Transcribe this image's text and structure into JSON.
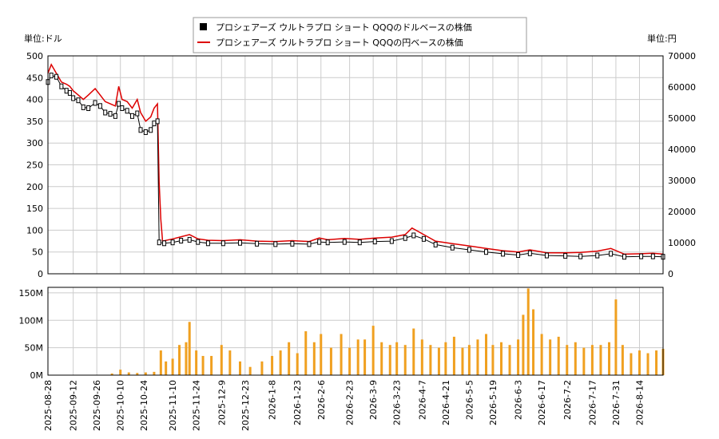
{
  "legend": {
    "usd_label": "プロシェアーズ ウルトラプロ ショート QQQのドルベースの株価",
    "jpy_label": "プロシェアーズ ウルトラプロ ショート QQQの円ベースの株価"
  },
  "axis_labels": {
    "left_unit": "単位:ドル",
    "right_unit": "単位:円"
  },
  "colors": {
    "usd_candle": "#000000",
    "jpy_line": "#dd0000",
    "volume_bar": "#f0a020",
    "grid": "#cccccc"
  },
  "chart_data": [
    {
      "type": "line",
      "name": "price-panel",
      "y_left": {
        "label": "単位:ドル",
        "lim": [
          0,
          500
        ],
        "ticks": [
          0,
          50,
          100,
          150,
          200,
          250,
          300,
          350,
          400,
          450,
          500
        ]
      },
      "y_right": {
        "label": "単位:円",
        "lim": [
          0,
          70000
        ],
        "ticks": [
          0,
          10000,
          20000,
          30000,
          40000,
          50000,
          60000,
          70000
        ]
      },
      "x_range": [
        "2025-08-28",
        "2026-08-28"
      ],
      "grid": true,
      "legend_position": "top-center",
      "series": [
        {
          "name": "プロシェアーズ ウルトラプロ ショート QQQのドルベースの株価",
          "style": "candlestick",
          "points": [
            [
              "2025-08-28",
              440
            ],
            [
              "2025-08-30",
              455
            ],
            [
              "2025-09-02",
              452
            ],
            [
              "2025-09-05",
              430
            ],
            [
              "2025-09-08",
              420
            ],
            [
              "2025-09-10",
              415
            ],
            [
              "2025-09-12",
              403
            ],
            [
              "2025-09-15",
              398
            ],
            [
              "2025-09-18",
              382
            ],
            [
              "2025-09-21",
              380
            ],
            [
              "2025-09-25",
              392
            ],
            [
              "2025-09-28",
              385
            ],
            [
              "2025-10-01",
              370
            ],
            [
              "2025-10-04",
              367
            ],
            [
              "2025-10-07",
              362
            ],
            [
              "2025-10-09",
              390
            ],
            [
              "2025-10-11",
              380
            ],
            [
              "2025-10-14",
              374
            ],
            [
              "2025-10-17",
              362
            ],
            [
              "2025-10-20",
              368
            ],
            [
              "2025-10-22",
              330
            ],
            [
              "2025-10-25",
              325
            ],
            [
              "2025-10-28",
              330
            ],
            [
              "2025-10-30",
              345
            ],
            [
              "2025-11-01",
              350
            ],
            [
              "2025-11-02",
              72
            ],
            [
              "2025-11-05",
              70
            ],
            [
              "2025-11-10",
              72
            ],
            [
              "2025-11-15",
              76
            ],
            [
              "2025-11-20",
              78
            ],
            [
              "2025-11-25",
              73
            ],
            [
              "2025-12-01",
              70
            ],
            [
              "2025-12-10",
              70
            ],
            [
              "2025-12-20",
              71
            ],
            [
              "2025-12-30",
              69
            ],
            [
              "2026-01-10",
              68
            ],
            [
              "2026-01-20",
              69
            ],
            [
              "2026-01-30",
              68
            ],
            [
              "2026-02-05",
              73
            ],
            [
              "2026-02-10",
              72
            ],
            [
              "2026-02-20",
              73
            ],
            [
              "2026-03-01",
              72
            ],
            [
              "2026-03-10",
              74
            ],
            [
              "2026-03-20",
              75
            ],
            [
              "2026-03-28",
              82
            ],
            [
              "2026-04-02",
              88
            ],
            [
              "2026-04-08",
              80
            ],
            [
              "2026-04-15",
              67
            ],
            [
              "2026-04-25",
              60
            ],
            [
              "2026-05-05",
              55
            ],
            [
              "2026-05-15",
              50
            ],
            [
              "2026-05-25",
              46
            ],
            [
              "2026-06-03",
              43
            ],
            [
              "2026-06-10",
              47
            ],
            [
              "2026-06-20",
              42
            ],
            [
              "2026-07-01",
              41
            ],
            [
              "2026-07-10",
              40
            ],
            [
              "2026-07-20",
              42
            ],
            [
              "2026-07-28",
              46
            ],
            [
              "2026-08-05",
              39
            ],
            [
              "2026-08-15",
              40
            ],
            [
              "2026-08-22",
              40
            ],
            [
              "2026-08-28",
              39
            ]
          ]
        },
        {
          "name": "プロシェアーズ ウルトラプロ ショート QQQの円ベースの株価",
          "style": "line",
          "axis": "right",
          "points": [
            [
              "2025-08-28",
              64400
            ],
            [
              "2025-08-30",
              67200
            ],
            [
              "2025-09-02",
              64400
            ],
            [
              "2025-09-05",
              61600
            ],
            [
              "2025-09-08",
              60900
            ],
            [
              "2025-09-10",
              60200
            ],
            [
              "2025-09-12",
              58800
            ],
            [
              "2025-09-15",
              57400
            ],
            [
              "2025-09-18",
              56000
            ],
            [
              "2025-09-21",
              57400
            ],
            [
              "2025-09-25",
              59500
            ],
            [
              "2025-09-28",
              57400
            ],
            [
              "2025-10-01",
              55300
            ],
            [
              "2025-10-04",
              54600
            ],
            [
              "2025-10-07",
              53900
            ],
            [
              "2025-10-09",
              60200
            ],
            [
              "2025-10-11",
              56000
            ],
            [
              "2025-10-14",
              55300
            ],
            [
              "2025-10-17",
              53200
            ],
            [
              "2025-10-20",
              56000
            ],
            [
              "2025-10-22",
              51800
            ],
            [
              "2025-10-25",
              49000
            ],
            [
              "2025-10-28",
              50400
            ],
            [
              "2025-10-30",
              53200
            ],
            [
              "2025-11-01",
              54600
            ],
            [
              "2025-11-02",
              29400
            ],
            [
              "2025-11-03",
              17500
            ],
            [
              "2025-11-04",
              10500
            ],
            [
              "2025-11-10",
              11200
            ],
            [
              "2025-11-15",
              11900
            ],
            [
              "2025-11-20",
              12600
            ],
            [
              "2025-11-25",
              11200
            ],
            [
              "2025-12-01",
              10780
            ],
            [
              "2025-12-10",
              10640
            ],
            [
              "2025-12-20",
              10920
            ],
            [
              "2025-12-30",
              10500
            ],
            [
              "2026-01-10",
              10360
            ],
            [
              "2026-01-20",
              10640
            ],
            [
              "2026-01-30",
              10360
            ],
            [
              "2026-02-05",
              11480
            ],
            [
              "2026-02-10",
              10920
            ],
            [
              "2026-02-20",
              11340
            ],
            [
              "2026-03-01",
              11060
            ],
            [
              "2026-03-10",
              11480
            ],
            [
              "2026-03-20",
              11760
            ],
            [
              "2026-03-28",
              12600
            ],
            [
              "2026-04-01",
              14700
            ],
            [
              "2026-04-08",
              12600
            ],
            [
              "2026-04-15",
              10500
            ],
            [
              "2026-04-25",
              9660
            ],
            [
              "2026-05-05",
              8960
            ],
            [
              "2026-05-15",
              8120
            ],
            [
              "2026-05-25",
              7420
            ],
            [
              "2026-06-03",
              7000
            ],
            [
              "2026-06-10",
              7700
            ],
            [
              "2026-06-20",
              6720
            ],
            [
              "2026-07-01",
              6720
            ],
            [
              "2026-07-10",
              6860
            ],
            [
              "2026-07-20",
              7280
            ],
            [
              "2026-07-28",
              8120
            ],
            [
              "2026-08-05",
              6300
            ],
            [
              "2026-08-15",
              6440
            ],
            [
              "2026-08-22",
              6580
            ],
            [
              "2026-08-28",
              6300
            ]
          ]
        }
      ]
    },
    {
      "type": "bar",
      "name": "volume-panel",
      "y_left": {
        "lim": [
          0,
          160
        ],
        "ticks": [
          0,
          50,
          100,
          150
        ],
        "tick_labels": [
          "0M",
          "50M",
          "100M",
          "150M"
        ]
      },
      "x_ticks": [
        "2025-08-28",
        "2025-09-12",
        "2025-09-26",
        "2025-10-10",
        "2025-10-24",
        "2025-11-10",
        "2025-11-24",
        "2025-12-9",
        "2025-12-23",
        "2026-1-8",
        "2026-1-23",
        "2026-2-6",
        "2026-2-23",
        "2026-3-9",
        "2026-3-23",
        "2026-4-7",
        "2026-4-21",
        "2026-5-5",
        "2026-5-19",
        "2026-6-3",
        "2026-6-17",
        "2026-7-2",
        "2026-7-17",
        "2026-7-31",
        "2026-8-14"
      ],
      "grid": true,
      "series": [
        {
          "name": "volume",
          "unit": "M",
          "points": [
            [
              "2025-10-05",
              3
            ],
            [
              "2025-10-10",
              10
            ],
            [
              "2025-10-15",
              5
            ],
            [
              "2025-10-20",
              4
            ],
            [
              "2025-10-25",
              5
            ],
            [
              "2025-10-30",
              6
            ],
            [
              "2025-11-03",
              45
            ],
            [
              "2025-11-06",
              25
            ],
            [
              "2025-11-10",
              30
            ],
            [
              "2025-11-14",
              55
            ],
            [
              "2025-11-18",
              60
            ],
            [
              "2025-11-20",
              97
            ],
            [
              "2025-11-24",
              45
            ],
            [
              "2025-11-28",
              35
            ],
            [
              "2025-12-03",
              35
            ],
            [
              "2025-12-09",
              55
            ],
            [
              "2025-12-14",
              45
            ],
            [
              "2025-12-20",
              25
            ],
            [
              "2025-12-26",
              15
            ],
            [
              "2026-01-02",
              25
            ],
            [
              "2026-01-08",
              35
            ],
            [
              "2026-01-13",
              45
            ],
            [
              "2026-01-18",
              60
            ],
            [
              "2026-01-23",
              40
            ],
            [
              "2026-01-28",
              80
            ],
            [
              "2026-02-02",
              60
            ],
            [
              "2026-02-06",
              75
            ],
            [
              "2026-02-12",
              50
            ],
            [
              "2026-02-18",
              75
            ],
            [
              "2026-02-23",
              50
            ],
            [
              "2026-02-28",
              65
            ],
            [
              "2026-03-04",
              65
            ],
            [
              "2026-03-09",
              90
            ],
            [
              "2026-03-14",
              60
            ],
            [
              "2026-03-19",
              55
            ],
            [
              "2026-03-23",
              60
            ],
            [
              "2026-03-28",
              55
            ],
            [
              "2026-04-02",
              85
            ],
            [
              "2026-04-07",
              65
            ],
            [
              "2026-04-12",
              55
            ],
            [
              "2026-04-17",
              50
            ],
            [
              "2026-04-21",
              60
            ],
            [
              "2026-04-26",
              70
            ],
            [
              "2026-05-01",
              50
            ],
            [
              "2026-05-05",
              55
            ],
            [
              "2026-05-10",
              65
            ],
            [
              "2026-05-15",
              75
            ],
            [
              "2026-05-19",
              55
            ],
            [
              "2026-05-24",
              60
            ],
            [
              "2026-05-29",
              55
            ],
            [
              "2026-06-03",
              65
            ],
            [
              "2026-06-06",
              110
            ],
            [
              "2026-06-09",
              158
            ],
            [
              "2026-06-12",
              120
            ],
            [
              "2026-06-17",
              75
            ],
            [
              "2026-06-22",
              65
            ],
            [
              "2026-06-27",
              70
            ],
            [
              "2026-07-02",
              55
            ],
            [
              "2026-07-07",
              60
            ],
            [
              "2026-07-12",
              50
            ],
            [
              "2026-07-17",
              55
            ],
            [
              "2026-07-22",
              55
            ],
            [
              "2026-07-27",
              60
            ],
            [
              "2026-07-31",
              138
            ],
            [
              "2026-08-04",
              55
            ],
            [
              "2026-08-09",
              40
            ],
            [
              "2026-08-14",
              45
            ],
            [
              "2026-08-19",
              40
            ],
            [
              "2026-08-24",
              45
            ],
            [
              "2026-08-28",
              48
            ]
          ]
        }
      ]
    }
  ]
}
